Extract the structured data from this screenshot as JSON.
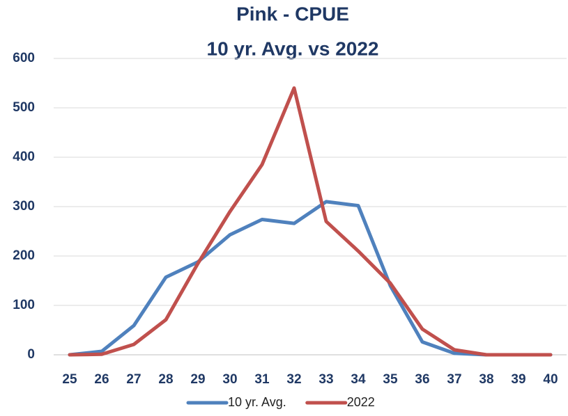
{
  "chart_data": {
    "type": "line",
    "title": "Pink - CPUE",
    "subtitle": "10 yr. Avg. vs 2022",
    "categories": [
      25,
      26,
      27,
      28,
      29,
      30,
      31,
      32,
      33,
      34,
      35,
      36,
      37,
      38,
      39,
      40
    ],
    "series": [
      {
        "name": "10 yr. Avg.",
        "color": "#4f81bd",
        "values": [
          0,
          7,
          59,
          157,
          188,
          243,
          274,
          266,
          310,
          302,
          140,
          26,
          3,
          0,
          0,
          0
        ]
      },
      {
        "name": "2022",
        "color": "#c0504d",
        "values": [
          0,
          1,
          21,
          71,
          185,
          290,
          385,
          540,
          270,
          210,
          145,
          52,
          10,
          0,
          0,
          0
        ]
      }
    ],
    "ylim": [
      0,
      600
    ],
    "yticks": [
      0,
      100,
      200,
      300,
      400,
      500,
      600
    ],
    "grid": true,
    "legend": "bottom"
  }
}
